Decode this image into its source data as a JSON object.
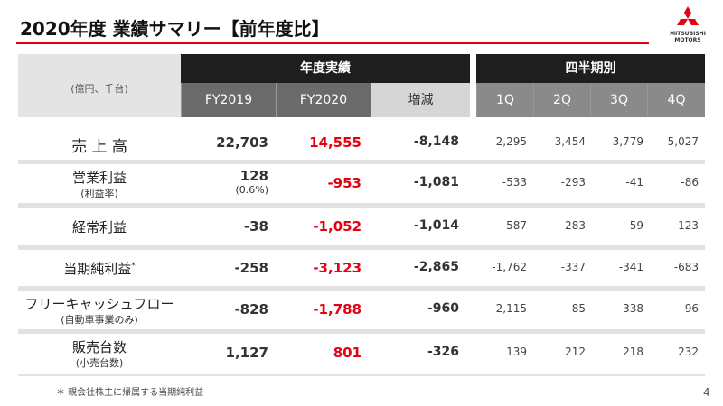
{
  "header": {
    "title": "2020年度 業績サマリー【前年度比】",
    "logo_line1": "MITSUBISHI",
    "logo_line2": "MOTORS"
  },
  "table": {
    "unit": "(億円、千台)",
    "group_annual": "年度実績",
    "group_quarterly": "四半期別",
    "columns": [
      "FY2019",
      "FY2020",
      "増減",
      "1Q",
      "2Q",
      "3Q",
      "4Q"
    ],
    "rows": [
      {
        "label": "売 上 高",
        "fy2019": "22,703",
        "fy2020": "14,555",
        "change": "-8,148",
        "quarters": [
          "2,295",
          "3,454",
          "3,779",
          "5,027"
        ]
      },
      {
        "label": "営業利益",
        "sublabel": "(利益率)",
        "fy2019": "128",
        "fy2019_sub": "(0.6%)",
        "fy2020": "-953",
        "change": "-1,081",
        "quarters": [
          "-533",
          "-293",
          "-41",
          "-86"
        ]
      },
      {
        "label": "経常利益",
        "fy2019": "-38",
        "fy2020": "-1,052",
        "change": "-1,014",
        "quarters": [
          "-587",
          "-283",
          "-59",
          "-123"
        ]
      },
      {
        "label": "当期純利益",
        "label_note": "*",
        "fy2019": "-258",
        "fy2020": "-3,123",
        "change": "-2,865",
        "quarters": [
          "-1,762",
          "-337",
          "-341",
          "-683"
        ]
      },
      {
        "label": "フリーキャッシュフロー",
        "sublabel": "(自動車事業のみ)",
        "fy2019": "-828",
        "fy2020": "-1,788",
        "change": "-960",
        "quarters": [
          "-2,115",
          "85",
          "338",
          "-96"
        ]
      },
      {
        "label": "販売台数",
        "sublabel": "(小売台数)",
        "fy2019": "1,127",
        "fy2020": "801",
        "change": "-326",
        "quarters": [
          "139",
          "212",
          "218",
          "232"
        ]
      }
    ]
  },
  "footnote": "＊ 親会社株主に帰属する当期純利益",
  "page_number": "4"
}
